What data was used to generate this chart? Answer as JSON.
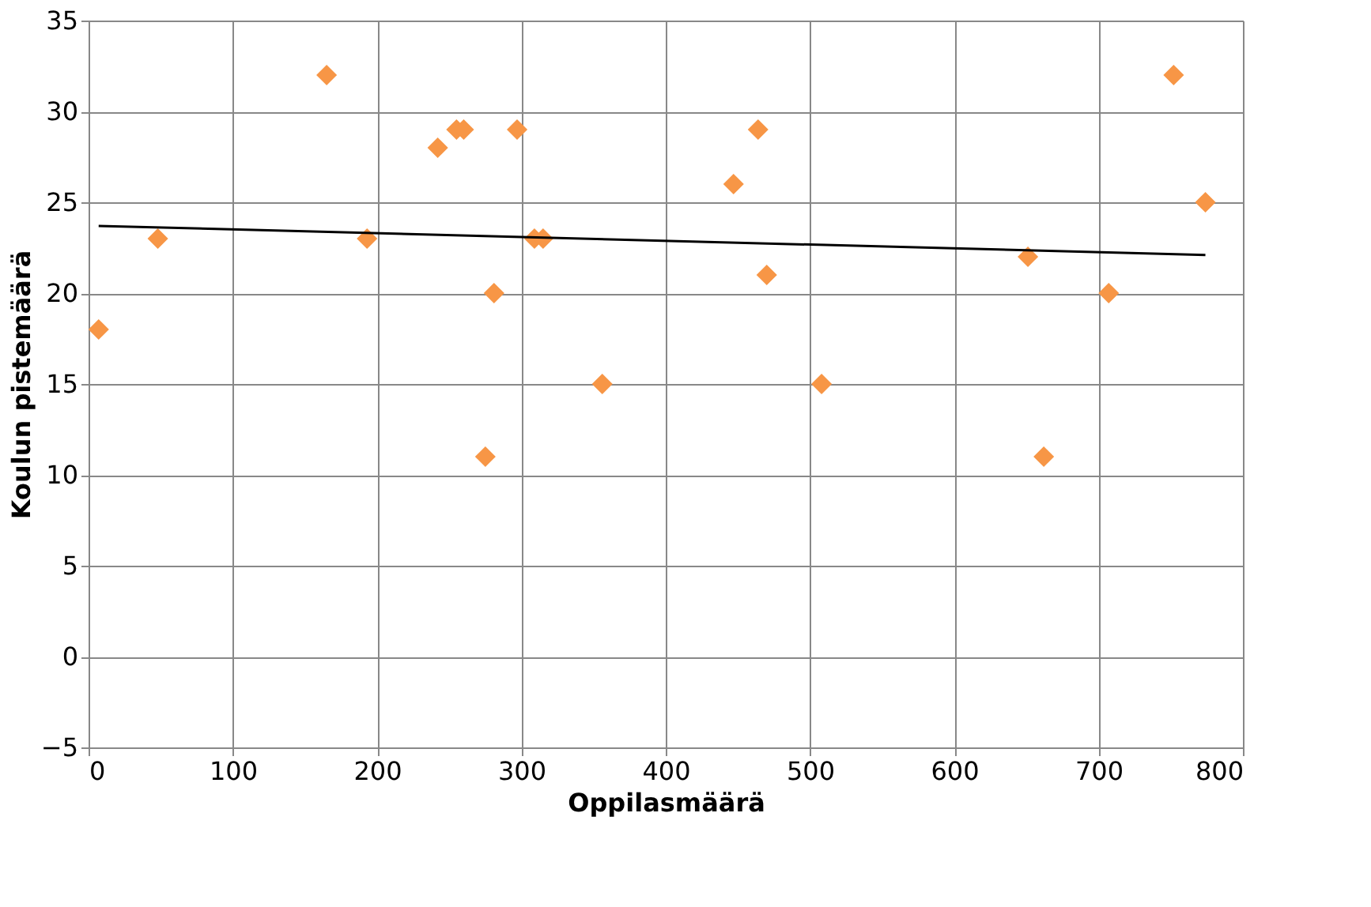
{
  "chart_data": {
    "type": "scatter",
    "xlabel": "Oppilasmäärä",
    "ylabel": "Koulun pistemäärä",
    "xlim": [
      0,
      800
    ],
    "xticks": [
      0,
      100,
      200,
      300,
      400,
      500,
      600,
      700,
      800
    ],
    "ylim": [
      -5,
      35
    ],
    "yticks": [
      -5,
      0,
      5,
      10,
      15,
      20,
      25,
      30,
      35
    ],
    "grid": true,
    "series": [
      {
        "marker": "diamond",
        "color": "#f79646",
        "x": [
          7,
          48,
          165,
          193,
          242,
          255,
          260,
          275,
          281,
          297,
          309,
          315,
          356,
          447,
          464,
          470,
          508,
          651,
          662,
          707,
          752,
          774
        ],
        "values": [
          18,
          23,
          32,
          23,
          28,
          29,
          29,
          11,
          20,
          29,
          23,
          23,
          15,
          26,
          29,
          21,
          15,
          22,
          11,
          20,
          32,
          25
        ]
      },
      {
        "type": "line",
        "marker": "none",
        "color": "#000000",
        "x": [
          7,
          774
        ],
        "values": [
          23.7,
          22.1
        ]
      }
    ]
  }
}
